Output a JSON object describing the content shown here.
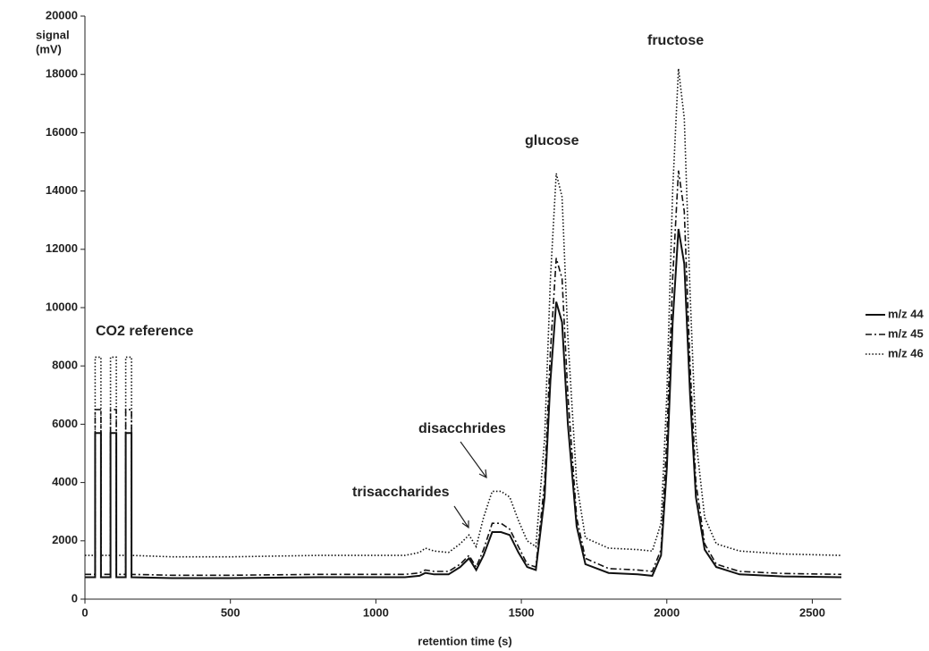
{
  "chart_data": {
    "type": "line",
    "ylabel": [
      "signal",
      "(mV)"
    ],
    "xlabel": "retention time (s)",
    "annotations": [
      "CO2 reference",
      "trisaccharides",
      "disacchrides",
      "glucose",
      "fructose"
    ],
    "x": [
      0,
      35,
      35,
      55,
      55,
      88,
      88,
      108,
      108,
      140,
      140,
      160,
      160,
      300,
      500,
      800,
      1000,
      1100,
      1150,
      1170,
      1200,
      1250,
      1290,
      1320,
      1345,
      1370,
      1400,
      1430,
      1460,
      1490,
      1520,
      1550,
      1580,
      1600,
      1620,
      1640,
      1660,
      1690,
      1720,
      1800,
      1900,
      1950,
      1980,
      2000,
      2020,
      2040,
      2060,
      2080,
      2100,
      2130,
      2170,
      2250,
      2400,
      2600
    ],
    "series": [
      {
        "name": "m/z 44",
        "color": "#111111",
        "dash": "solid",
        "values": [
          750,
          750,
          5700,
          5700,
          750,
          750,
          5700,
          5700,
          750,
          750,
          5700,
          5700,
          750,
          720,
          720,
          750,
          750,
          750,
          800,
          900,
          850,
          850,
          1100,
          1400,
          1000,
          1500,
          2300,
          2300,
          2200,
          1600,
          1100,
          1000,
          3500,
          7500,
          10200,
          9500,
          6000,
          2500,
          1200,
          900,
          850,
          800,
          1500,
          4500,
          9500,
          12700,
          11500,
          7000,
          3500,
          1700,
          1100,
          850,
          780,
          750
        ]
      },
      {
        "name": "m/z 45",
        "color": "#111111",
        "dash": "dashdot",
        "values": [
          850,
          850,
          6500,
          6500,
          850,
          850,
          6500,
          6500,
          850,
          850,
          6500,
          6500,
          850,
          820,
          820,
          850,
          850,
          850,
          900,
          1000,
          950,
          950,
          1200,
          1500,
          1100,
          1700,
          2600,
          2600,
          2400,
          1800,
          1200,
          1100,
          4000,
          8500,
          11700,
          11000,
          7000,
          2800,
          1400,
          1050,
          1000,
          950,
          1700,
          5500,
          11000,
          14700,
          13300,
          8000,
          4000,
          1900,
          1200,
          950,
          880,
          850
        ]
      },
      {
        "name": "m/z 46",
        "color": "#111111",
        "dash": "dotted",
        "values": [
          1500,
          1500,
          8300,
          8300,
          1500,
          1500,
          8300,
          8300,
          1500,
          1500,
          8300,
          8300,
          1500,
          1450,
          1450,
          1500,
          1500,
          1500,
          1600,
          1750,
          1650,
          1600,
          1900,
          2200,
          1800,
          2800,
          3700,
          3700,
          3500,
          2700,
          2000,
          1800,
          5500,
          11000,
          14600,
          13800,
          9000,
          4000,
          2100,
          1750,
          1700,
          1650,
          2600,
          7000,
          14000,
          18200,
          16500,
          10500,
          5500,
          2800,
          1900,
          1650,
          1550,
          1500
        ]
      }
    ],
    "xlim": [
      0,
      2600
    ],
    "xticks": [
      0,
      500,
      1000,
      1500,
      2000,
      2500
    ],
    "ylim": [
      0,
      20000
    ],
    "yticks": [
      0,
      2000,
      4000,
      6000,
      8000,
      10000,
      12000,
      14000,
      16000,
      18000,
      20000
    ],
    "grid": false,
    "legend": "right"
  }
}
